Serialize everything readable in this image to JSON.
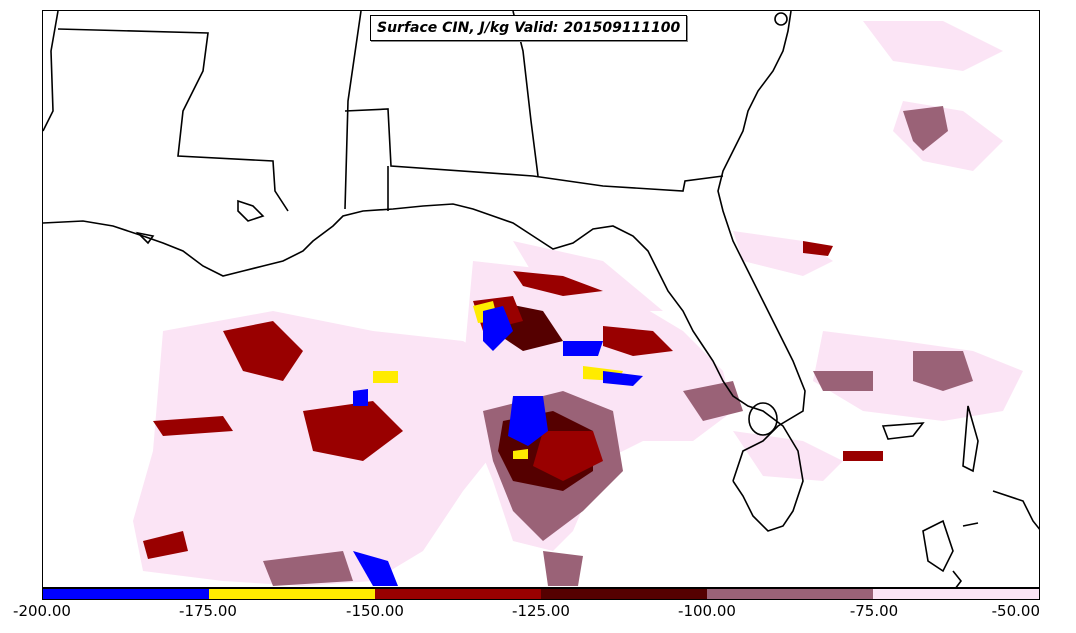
{
  "title": "Surface CIN, J/kg Valid: 201509111100",
  "colorbar": {
    "labels": [
      "-200.00",
      "-175.00",
      "-150.00",
      "-125.00",
      "-100.00",
      "-75.00",
      "-50.00"
    ],
    "colors": [
      "#0000ff",
      "#ffeb00",
      "#990000",
      "#550000",
      "#9a6277",
      "#fbe4f5"
    ]
  }
}
